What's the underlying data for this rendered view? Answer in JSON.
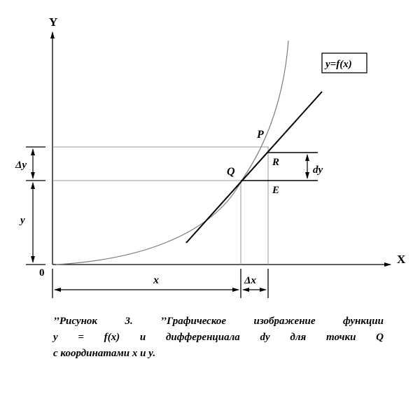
{
  "labels": {
    "y_axis": "Y",
    "x_axis": "X",
    "origin": "0",
    "function": "y=f(x)",
    "point_p": "P",
    "point_q": "Q",
    "point_r": "R",
    "point_e": "E",
    "delta_y": "Δy",
    "y": "y",
    "dy": "dy",
    "x": "x",
    "delta_x": "Δx"
  },
  "caption": {
    "line1": "’’Рисунок 3. ’’Графическое изображение функции",
    "line2": "y = f(x) и дифференциала dy для точки Q",
    "line3": "с координатами x и y."
  },
  "colors": {
    "ink": "#000000",
    "guide": "#9a9a9a"
  }
}
